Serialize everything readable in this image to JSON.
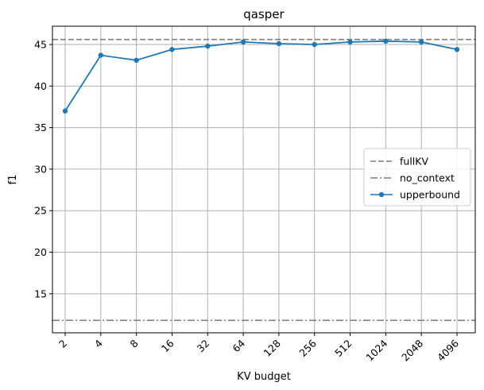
{
  "chart_data": {
    "type": "line",
    "title": "qasper",
    "xlabel": "KV budget",
    "ylabel": "f1",
    "categories": [
      "2",
      "4",
      "8",
      "16",
      "32",
      "64",
      "128",
      "256",
      "512",
      "1024",
      "2048",
      "4096"
    ],
    "ylim": [
      10.3,
      47.2
    ],
    "yticks": [
      15,
      20,
      25,
      30,
      35,
      40,
      45
    ],
    "grid": true,
    "legend_position": "right",
    "series": [
      {
        "name": "upperbound",
        "style": "solid-marker",
        "color": "#1f77b4",
        "values": [
          37.0,
          43.7,
          43.1,
          44.4,
          44.8,
          45.3,
          45.1,
          45.0,
          45.3,
          45.4,
          45.3,
          44.4
        ]
      }
    ],
    "reference_lines": [
      {
        "name": "fullKV",
        "style": "dashed",
        "color": "#7f7f7f",
        "value": 45.6
      },
      {
        "name": "no_context",
        "style": "dashdot",
        "color": "#7f7f7f",
        "value": 11.8
      }
    ]
  }
}
